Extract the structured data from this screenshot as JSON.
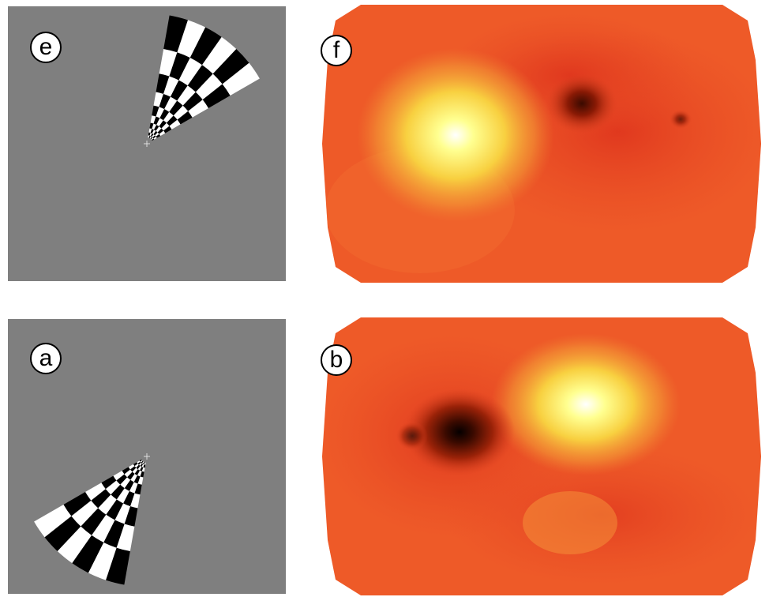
{
  "panels": [
    {
      "id": "e",
      "label": "e",
      "kind": "stimulus"
    },
    {
      "id": "f",
      "label": "f",
      "kind": "activation-map"
    },
    {
      "id": "a",
      "label": "a",
      "kind": "stimulus"
    },
    {
      "id": "b",
      "label": "b",
      "kind": "activation-map"
    }
  ],
  "colors": {
    "stimulus_background": "#7f7f7f",
    "map_base": "#e8522a",
    "map_hot": "#ffff80",
    "map_cold": "#1a0500"
  }
}
